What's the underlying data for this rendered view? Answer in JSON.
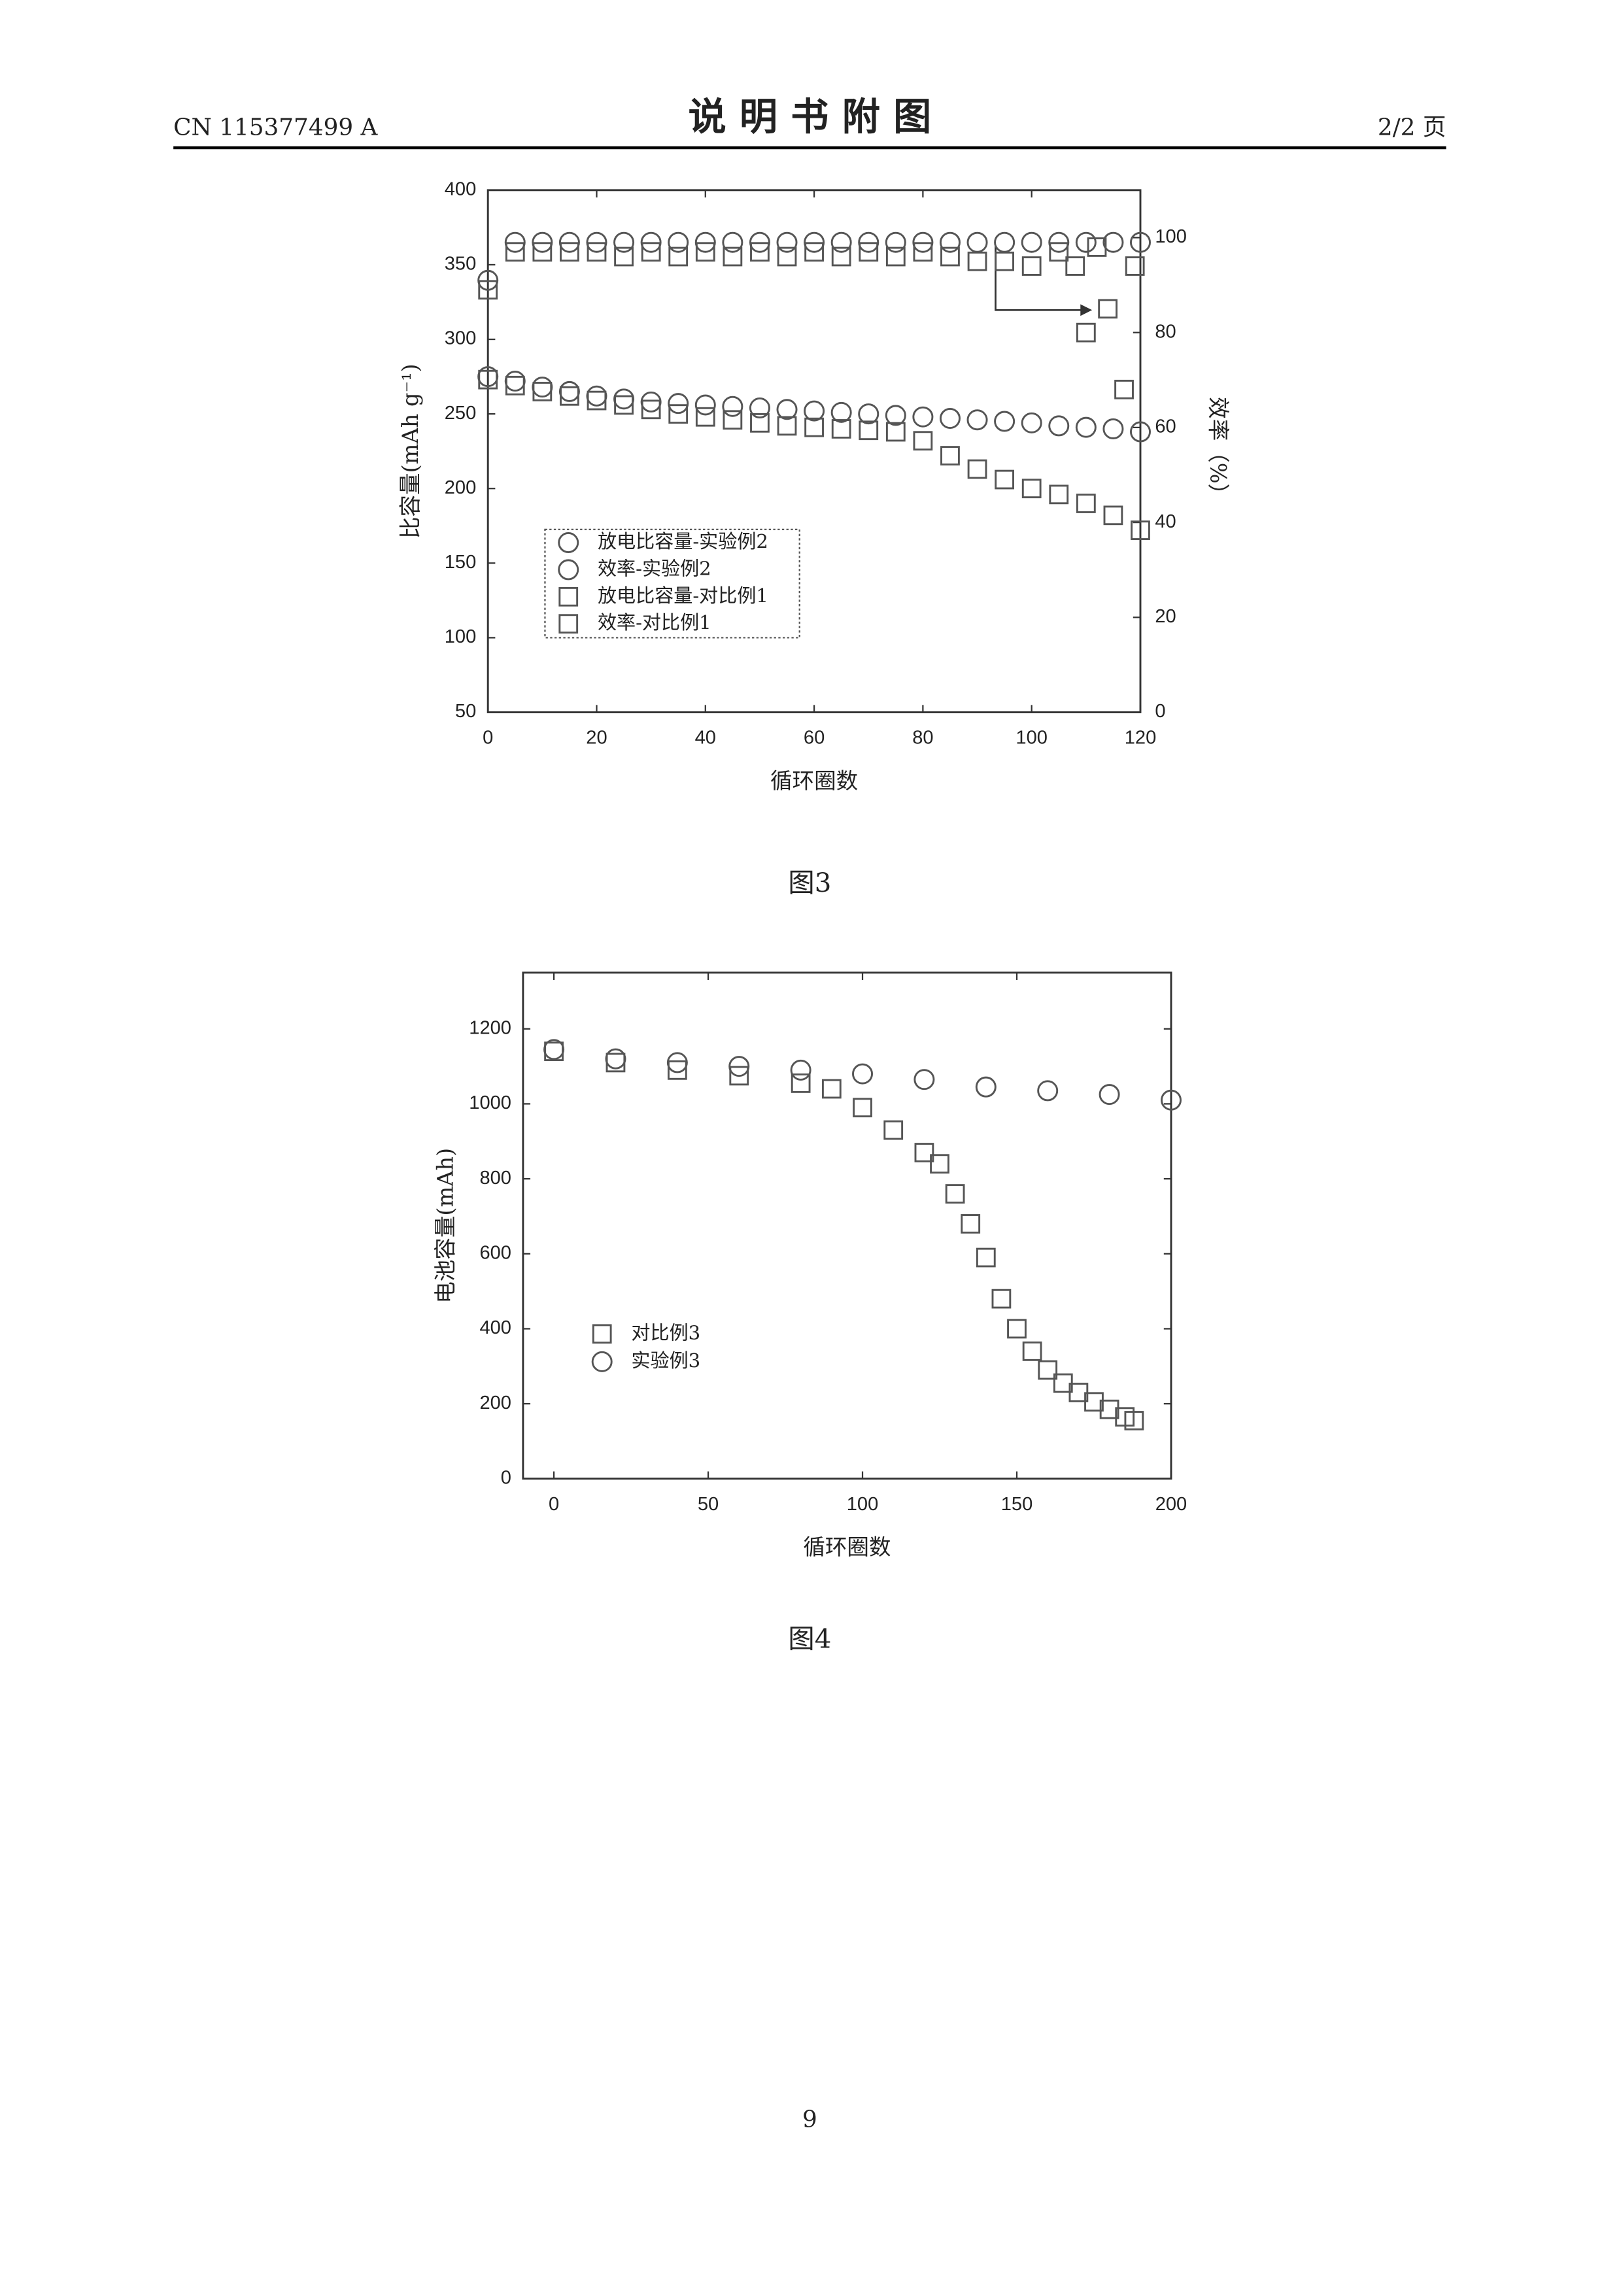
{
  "header": {
    "left": "CN 115377499 A",
    "title": "说 明 书 附 图",
    "right": "2/2 页"
  },
  "chart_data": [
    {
      "type": "scatter",
      "caption": "图3",
      "x_label": "循环圈数",
      "y_label": "比容量(mAh g⁻¹)",
      "y2_label": "效率（%）",
      "xlim": [
        0,
        120
      ],
      "xticks": [
        0,
        20,
        40,
        60,
        80,
        100,
        120
      ],
      "ylim": [
        50,
        400
      ],
      "yticks": [
        50,
        100,
        150,
        200,
        250,
        300,
        350,
        400
      ],
      "y2lim": [
        0,
        110
      ],
      "y2ticks": [
        0,
        20,
        40,
        60,
        80,
        100
      ],
      "series": [
        {
          "name": "放电比容量-实验例2",
          "marker": "circle",
          "color": "#555555",
          "x": [
            0,
            5,
            10,
            15,
            20,
            25,
            30,
            35,
            40,
            45,
            50,
            55,
            60,
            65,
            70,
            75,
            80,
            85,
            90,
            95,
            100,
            105,
            110,
            115,
            120
          ],
          "values": [
            275,
            272,
            268,
            265,
            262,
            260,
            258,
            257,
            256,
            255,
            254,
            253,
            252,
            251,
            250,
            249,
            248,
            247,
            246,
            245,
            244,
            242,
            241,
            240,
            238
          ]
        },
        {
          "name": "效率-实验例2",
          "marker": "circle",
          "color": "#555555",
          "axis": "y2",
          "x": [
            0,
            5,
            10,
            15,
            20,
            25,
            30,
            35,
            40,
            45,
            50,
            55,
            60,
            65,
            70,
            75,
            80,
            85,
            90,
            95,
            100,
            105,
            110,
            115,
            120
          ],
          "values": [
            91,
            99,
            99,
            99,
            99,
            99,
            99,
            99,
            99,
            99,
            99,
            99,
            99,
            99,
            99,
            99,
            99,
            99,
            99,
            99,
            99,
            99,
            99,
            99,
            99
          ]
        },
        {
          "name": "放电比容量-对比例1",
          "marker": "square",
          "color": "#555555",
          "x": [
            0,
            5,
            10,
            15,
            20,
            25,
            30,
            35,
            40,
            45,
            50,
            55,
            60,
            65,
            70,
            75,
            80,
            85,
            90,
            95,
            100,
            105,
            110,
            115,
            120
          ],
          "values": [
            273,
            269,
            265,
            262,
            259,
            256,
            253,
            250,
            248,
            246,
            244,
            242,
            241,
            240,
            239,
            238,
            232,
            222,
            213,
            206,
            200,
            196,
            190,
            182,
            172
          ]
        },
        {
          "name": "效率-对比例1",
          "marker": "square",
          "color": "#555555",
          "axis": "y2",
          "x": [
            0,
            5,
            10,
            15,
            20,
            25,
            30,
            35,
            40,
            45,
            50,
            55,
            60,
            65,
            70,
            75,
            80,
            85,
            90,
            95,
            100,
            105,
            108,
            110,
            112,
            114,
            117,
            119
          ],
          "values": [
            89,
            97,
            97,
            97,
            97,
            96,
            97,
            96,
            97,
            96,
            97,
            96,
            97,
            96,
            97,
            96,
            97,
            96,
            95,
            95,
            94,
            97,
            94,
            80,
            98,
            85,
            68,
            94
          ]
        }
      ]
    },
    {
      "type": "scatter",
      "caption": "图4",
      "x_label": "循环圈数",
      "y_label": "电池容量(mAh)",
      "xlim": [
        -10,
        200
      ],
      "xticks": [
        0,
        50,
        100,
        150,
        200
      ],
      "ylim": [
        0,
        1350
      ],
      "yticks": [
        0,
        200,
        400,
        600,
        800,
        1000,
        1200
      ],
      "series": [
        {
          "name": "对比例3",
          "marker": "square",
          "color": "#555555",
          "x": [
            0,
            20,
            40,
            60,
            80,
            90,
            100,
            110,
            120,
            125,
            130,
            135,
            140,
            145,
            150,
            155,
            160,
            165,
            170,
            175,
            180,
            185,
            188
          ],
          "values": [
            1140,
            1110,
            1090,
            1075,
            1055,
            1040,
            990,
            930,
            870,
            840,
            760,
            680,
            590,
            480,
            400,
            340,
            290,
            255,
            230,
            205,
            185,
            165,
            155
          ]
        },
        {
          "name": "实验例3",
          "marker": "circle",
          "color": "#555555",
          "x": [
            0,
            20,
            40,
            60,
            80,
            100,
            120,
            140,
            160,
            180,
            200
          ],
          "values": [
            1145,
            1120,
            1110,
            1100,
            1090,
            1080,
            1065,
            1045,
            1035,
            1025,
            1010
          ]
        }
      ]
    }
  ],
  "page_number": "9"
}
